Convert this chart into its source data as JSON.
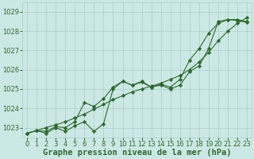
{
  "xlabel": "Graphe pression niveau de la mer (hPa)",
  "ylim": [
    1022.5,
    1029.5
  ],
  "xlim": [
    -0.5,
    23.5
  ],
  "yticks": [
    1023,
    1024,
    1025,
    1026,
    1027,
    1028,
    1029
  ],
  "xticks": [
    0,
    1,
    2,
    3,
    4,
    5,
    6,
    7,
    8,
    9,
    10,
    11,
    12,
    13,
    14,
    15,
    16,
    17,
    18,
    19,
    20,
    21,
    22,
    23
  ],
  "bg_color": "#cce8e4",
  "grid_color": "#aacccc",
  "line_color": "#2d6a2d",
  "smooth_line": [
    1022.7,
    1022.85,
    1023.0,
    1023.15,
    1023.3,
    1023.5,
    1023.7,
    1023.95,
    1024.2,
    1024.45,
    1024.65,
    1024.85,
    1025.0,
    1025.15,
    1025.3,
    1025.5,
    1025.7,
    1026.0,
    1026.4,
    1026.9,
    1027.5,
    1028.0,
    1028.4,
    1028.7
  ],
  "jagged_line": [
    1022.7,
    1022.85,
    1022.7,
    1023.0,
    1022.8,
    1023.1,
    1023.3,
    1022.8,
    1023.2,
    1025.0,
    1025.4,
    1025.2,
    1025.4,
    1025.1,
    1025.2,
    1025.0,
    1025.2,
    1025.9,
    1026.2,
    1027.1,
    1028.5,
    1028.6,
    1028.6,
    1028.5
  ],
  "mid_line": [
    1022.7,
    1022.85,
    1022.8,
    1023.05,
    1023.0,
    1023.3,
    1024.3,
    1024.1,
    1024.5,
    1025.1,
    1025.4,
    1025.2,
    1025.35,
    1025.1,
    1025.25,
    1025.1,
    1025.5,
    1026.5,
    1027.1,
    1027.9,
    1028.4,
    1028.6,
    1028.55,
    1028.45
  ],
  "tick_fontsize": 6.0,
  "xlabel_fontsize": 7.5
}
